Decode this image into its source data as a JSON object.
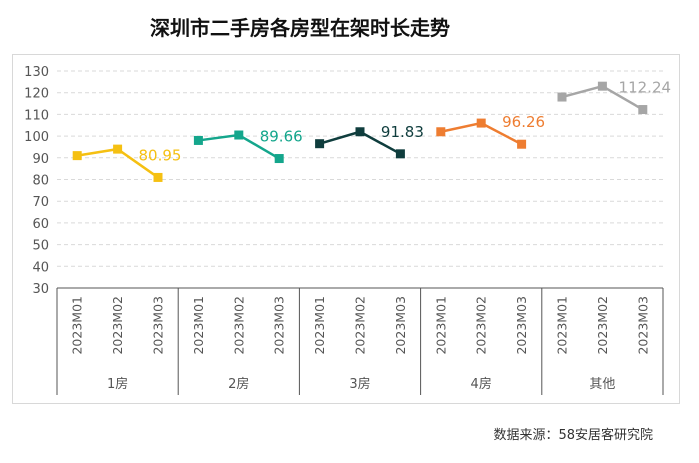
{
  "title": "深圳市二手房各房型在架时长走势",
  "source": "数据来源：58安居客研究院",
  "colors": {
    "1房": "#f5c012",
    "2房": "#14a68c",
    "3房": "#0f3d3d",
    "4房": "#ee7d31",
    "其他": "#a6a6a6",
    "grid": "#d9d9d9",
    "axis": "#555555"
  },
  "chart_data": {
    "type": "line",
    "title": "深圳市二手房各房型在架时长走势",
    "ylim": [
      30,
      130
    ],
    "yticks": [
      30,
      40,
      50,
      60,
      70,
      80,
      90,
      100,
      110,
      120,
      130
    ],
    "grid": true,
    "xlabel": "",
    "ylabel": "",
    "periods": [
      "2023M01",
      "2023M02",
      "2023M03"
    ],
    "series": [
      {
        "name": "1房",
        "values": [
          91,
          94,
          80.95
        ],
        "label": "80.95"
      },
      {
        "name": "2房",
        "values": [
          98,
          100.5,
          89.66
        ],
        "label": "89.66"
      },
      {
        "name": "3房",
        "values": [
          96.5,
          102,
          91.83
        ],
        "label": "91.83"
      },
      {
        "name": "4房",
        "values": [
          102,
          106,
          96.26
        ],
        "label": "96.26"
      },
      {
        "name": "其他",
        "values": [
          118,
          123,
          112.24
        ],
        "label": "112.24"
      }
    ]
  }
}
